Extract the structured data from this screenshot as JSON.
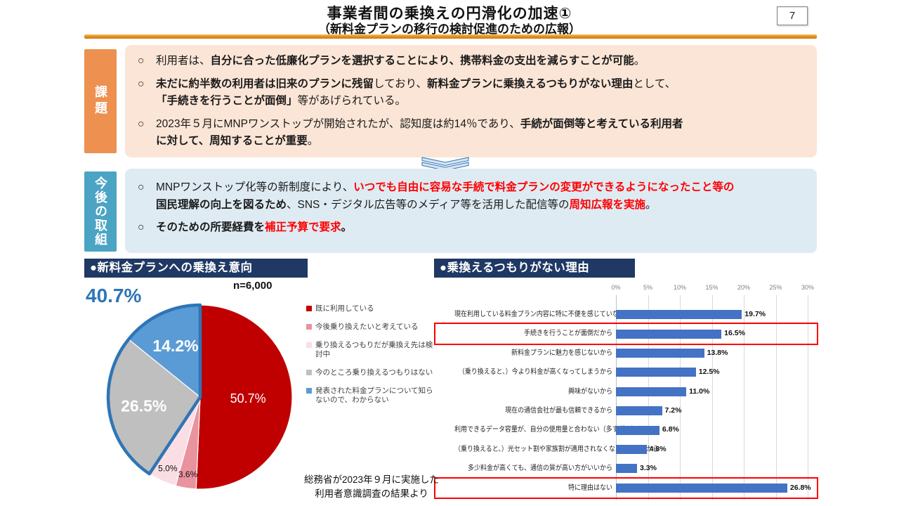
{
  "page": {
    "number": "7"
  },
  "title": {
    "line1": "事業者間の乗換えの円滑化の加速①",
    "line2": "（新料金プランの移行の検討促進のための広報）"
  },
  "issues": {
    "label": "課題",
    "marker": "○",
    "bullets": [
      {
        "segments": [
          {
            "t": "利用者は、"
          },
          {
            "t": "自分に合った低廉化プランを選択することにより、携帯料金の支出を減らすことが可能",
            "b": true
          },
          {
            "t": "。"
          }
        ]
      },
      {
        "segments": [
          {
            "t": "未だに約半数の利用者は旧来のプランに残留",
            "b": true
          },
          {
            "t": "しており、"
          },
          {
            "t": "新料金プランに乗換えるつもりがない理由",
            "b": true
          },
          {
            "t": "として、\n"
          },
          {
            "t": "「手続きを行うことが面倒」",
            "b": true
          },
          {
            "t": "等があげられている。"
          }
        ]
      },
      {
        "segments": [
          {
            "t": "2023年５月にMNPワンストップが開始されたが、認知度は約14％であり、"
          },
          {
            "t": "手続が面倒等と考えている利用者\nに対して、周知することが重要",
            "b": true
          },
          {
            "t": "。"
          }
        ]
      }
    ]
  },
  "actions": {
    "label": "今後の取組",
    "marker": "○",
    "bullets": [
      {
        "segments": [
          {
            "t": "MNPワンストップ化等の新制度により、"
          },
          {
            "t": "いつでも自由に容易な手続で料金プランの変更ができるようになったこと等の\n",
            "b": true,
            "r": true
          },
          {
            "t": "国民理解の向上を図るため",
            "b": true
          },
          {
            "t": "、SNS・デジタル広告等のメディア等を活用した配信等の"
          },
          {
            "t": "周知広報を実施",
            "b": true,
            "r": true
          },
          {
            "t": "。"
          }
        ]
      },
      {
        "segments": [
          {
            "t": "そのための所要経費を",
            "b": true
          },
          {
            "t": "補正予算で要求",
            "b": true,
            "r": true
          },
          {
            "t": "。",
            "b": true
          }
        ]
      }
    ]
  },
  "source_note": {
    "line1": "総務省が2023年９月に実施した",
    "line2": "利用者意識調査の結果より"
  },
  "chart_data": [
    {
      "type": "pie",
      "title": "●新料金プランへの乗換え意向",
      "sample_label": "n=6,000",
      "slices": [
        {
          "label": "既に利用している",
          "value": 50.7,
          "color": "#C00000"
        },
        {
          "label": "今後乗り換えたいと考えている",
          "value": 3.6,
          "color": "#E8939E"
        },
        {
          "label": "乗り換えるつもりだが乗換え先は検討中",
          "value": 5.0,
          "color": "#FBDEE3"
        },
        {
          "label": "今のところ乗り換えるつもりはない",
          "value": 26.5,
          "color": "#BFBFBF"
        },
        {
          "label": "発表された料金プランについて知らないので、わからない",
          "value": 14.2,
          "color": "#5B9BD5"
        }
      ],
      "highlight": {
        "slice_indexes": [
          3,
          4
        ],
        "total_label": "40.7%",
        "color": "#2E75B6"
      },
      "legend_position": "right",
      "start_angle": "top-clockwise"
    },
    {
      "type": "bar",
      "orientation": "horizontal",
      "title": "●乗換えるつもりがない理由",
      "categories": [
        "現在利用している料金プラン内容に特に不便を感じていないから",
        "手続きを行うことが面倒だから",
        "新料金プランに魅力を感じないから",
        "（乗り換えると、）今より料金が高くなってしまうから",
        "興味がないから",
        "現在の通信会社が最も信頼できるから",
        "利用できるデータ容量が、自分の使用量と合わない（多すぎる）から",
        "（乗り換えると、）光セット割や家族割が適用されなくなってしまうから",
        "多少料金が高くても、通信の質が高い方がいいから",
        "特に理由はない"
      ],
      "values": [
        19.7,
        16.5,
        13.8,
        12.5,
        11.0,
        7.2,
        6.8,
        4.8,
        3.3,
        26.8
      ],
      "value_suffix": "%",
      "bar_color": "#4472C4",
      "highlighted_rows": [
        1,
        9
      ],
      "highlight_color": "#FF0000",
      "xaxis": {
        "min": 0,
        "max": 30,
        "step": 5,
        "unit": "%",
        "grid": true,
        "tick_position": "top"
      }
    }
  ]
}
